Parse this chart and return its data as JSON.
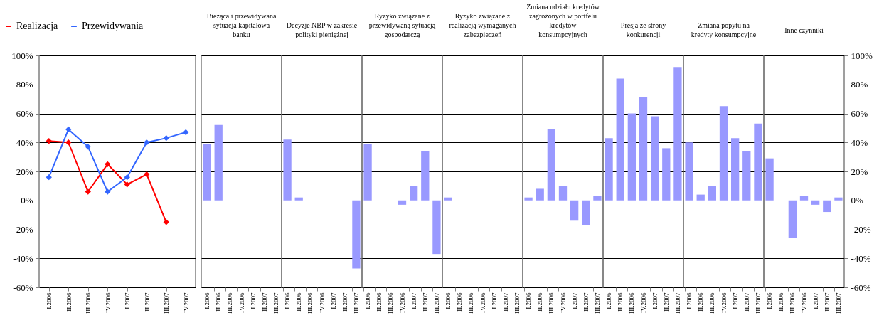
{
  "chart_data": [
    {
      "type": "line",
      "categories": [
        "I.2006",
        "II.2006",
        "III.2006",
        "IV.2006",
        "I.2007",
        "II.2007",
        "III.2007",
        "IV.2007"
      ],
      "series": [
        {
          "name": "Realizacja",
          "color": "#ff0000",
          "values": [
            41,
            40,
            6,
            25,
            11,
            18,
            -15,
            null
          ]
        },
        {
          "name": "Przewidywania",
          "color": "#3366ff",
          "values": [
            16,
            49,
            37,
            6,
            16,
            40,
            43,
            47
          ]
        }
      ],
      "ylim": [
        -60,
        100
      ],
      "yticks": [
        {
          "value": -60,
          "label": "-60%"
        },
        {
          "value": -40,
          "label": "-40%"
        },
        {
          "value": -20,
          "label": "-20%"
        },
        {
          "value": 0,
          "label": "0%"
        },
        {
          "value": 20,
          "label": "20%"
        },
        {
          "value": 40,
          "label": "40%"
        },
        {
          "value": 60,
          "label": "60%"
        },
        {
          "value": 80,
          "label": "80%"
        },
        {
          "value": 100,
          "label": "100%"
        }
      ],
      "grid": "y",
      "legend": "top left",
      "marker": "diamond"
    },
    {
      "type": "bar",
      "title": "Bieżąca i przewidywana sytuacja kapitałowa banku",
      "categories": [
        "I.2006",
        "II.2006",
        "III.2006",
        "IV.2006",
        "I.2007",
        "II.2007",
        "III.2007"
      ],
      "values": [
        39,
        52,
        0,
        0,
        0,
        0,
        0
      ],
      "color": "#9999ff",
      "ylim": [
        -60,
        100
      ],
      "yticks": [
        -60,
        -40,
        -20,
        0,
        20,
        40,
        60,
        80,
        100
      ],
      "grid": "y",
      "tick_labels": "x"
    },
    {
      "type": "bar",
      "title": "Decyzje NBP w zakresie polityki pieniężnej",
      "categories": [
        "I.2006",
        "II.2006",
        "III.2006",
        "IV.2006",
        "I.2007",
        "II.2007",
        "III.2007"
      ],
      "values": [
        42,
        2,
        0,
        0,
        0,
        0,
        -47
      ],
      "color": "#9999ff",
      "ylim": [
        -60,
        100
      ],
      "yticks": [
        -60,
        -40,
        -20,
        0,
        20,
        40,
        60,
        80,
        100
      ],
      "grid": "y",
      "tick_labels": "x"
    },
    {
      "type": "bar",
      "title": "Ryzyko związane z przewidywaną sytuacją gospodarczą",
      "categories": [
        "I.2006",
        "II.2006",
        "III.2006",
        "IV.2006",
        "I.2007",
        "II.2007",
        "III.2007"
      ],
      "values": [
        39,
        0,
        0,
        -3,
        10,
        34,
        -37
      ],
      "color": "#9999ff",
      "ylim": [
        -60,
        100
      ],
      "yticks": [
        -60,
        -40,
        -20,
        0,
        20,
        40,
        60,
        80,
        100
      ],
      "grid": "y",
      "tick_labels": "x"
    },
    {
      "type": "bar",
      "title": "Ryzyko związane z realizacją wymaganych zabezpieczeń",
      "categories": [
        "I.2006",
        "II.2006",
        "III.2006",
        "IV.2006",
        "I.2007",
        "II.2007",
        "III.2007"
      ],
      "values": [
        2,
        0,
        0,
        0,
        0,
        0,
        0
      ],
      "color": "#9999ff",
      "ylim": [
        -60,
        100
      ],
      "yticks": [
        -60,
        -40,
        -20,
        0,
        20,
        40,
        60,
        80,
        100
      ],
      "grid": "y",
      "tick_labels": "x"
    },
    {
      "type": "bar",
      "title": "Zmiana udziału kredytów zagrożonych w portfelu kredytów konsumpcyjnych",
      "categories": [
        "I.2006",
        "II.2006",
        "III.2006",
        "IV.2006",
        "I.2007",
        "II.2007",
        "III.2007"
      ],
      "values": [
        2,
        8,
        49,
        10,
        -14,
        -17,
        3
      ],
      "color": "#9999ff",
      "ylim": [
        -60,
        100
      ],
      "yticks": [
        -60,
        -40,
        -20,
        0,
        20,
        40,
        60,
        80,
        100
      ],
      "grid": "y",
      "tick_labels": "x"
    },
    {
      "type": "bar",
      "title": "Presja ze strony konkurencji",
      "categories": [
        "I.2006",
        "II.2006",
        "III.2006",
        "IV.2006",
        "I.2007",
        "II.2007",
        "III.2007"
      ],
      "values": [
        43,
        84,
        60,
        71,
        58,
        36,
        92
      ],
      "color": "#9999ff",
      "ylim": [
        -60,
        100
      ],
      "yticks": [
        -60,
        -40,
        -20,
        0,
        20,
        40,
        60,
        80,
        100
      ],
      "grid": "y",
      "tick_labels": "x"
    },
    {
      "type": "bar",
      "title": "Zmiana popytu na kredyty konsumpcyjne",
      "categories": [
        "I.2006",
        "II.2006",
        "III.2006",
        "IV.2006",
        "I.2007",
        "II.2007",
        "III.2007"
      ],
      "values": [
        40,
        4,
        10,
        65,
        43,
        34,
        53
      ],
      "color": "#9999ff",
      "ylim": [
        -60,
        100
      ],
      "yticks": [
        -60,
        -40,
        -20,
        0,
        20,
        40,
        60,
        80,
        100
      ],
      "grid": "y",
      "tick_labels": "x"
    },
    {
      "type": "bar",
      "title": "Inne czynniki",
      "categories": [
        "I.2006",
        "II.2006",
        "III.2006",
        "IV.2006",
        "I.2007",
        "II.2007",
        "III.2007"
      ],
      "values": [
        29,
        0,
        -26,
        3,
        -3,
        -8,
        2
      ],
      "color": "#9999ff",
      "ylim": [
        -60,
        100
      ],
      "yticks": [
        {
          "value": -60,
          "label": "-60%"
        },
        {
          "value": -40,
          "label": "-40%"
        },
        {
          "value": -20,
          "label": "-20%"
        },
        {
          "value": 0,
          "label": "0%"
        },
        {
          "value": 20,
          "label": "20%"
        },
        {
          "value": 40,
          "label": "40%"
        },
        {
          "value": 60,
          "label": "60%"
        },
        {
          "value": 80,
          "label": "80%"
        },
        {
          "value": 100,
          "label": "100%"
        }
      ],
      "grid": "y"
    }
  ]
}
